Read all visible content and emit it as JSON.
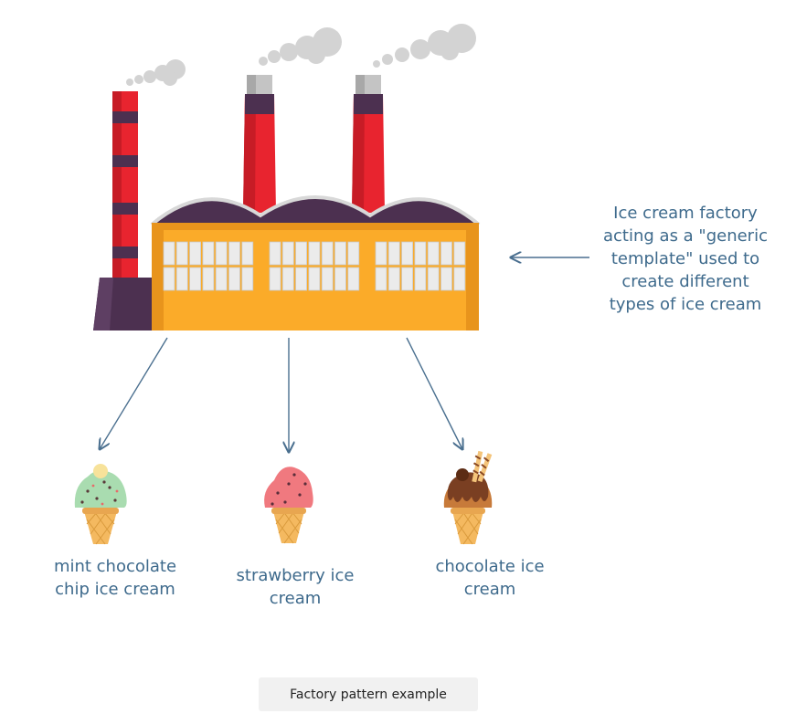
{
  "annotation": "Ice cream factory\nacting as a \"generic\ntemplate\" used to\ncreate different\ntypes of ice cream",
  "products": {
    "mint": "mint chocolate\nchip ice cream",
    "strawberry": "strawberry ice\ncream",
    "chocolate": "chocolate ice\ncream"
  },
  "caption": "Factory pattern example",
  "colors": {
    "text": "#3e6a8c",
    "arrow": "#4a6f8f",
    "chimney_red": "#e8242f",
    "chimney_band": "#4c3050",
    "roof": "#4c3050",
    "building": "#fbab29",
    "smoke": "#d1d1d1",
    "cone": "#f4b960",
    "mint": "#a9dcb0",
    "strawberry": "#f0797f",
    "chocolate": "#7a3f22"
  }
}
